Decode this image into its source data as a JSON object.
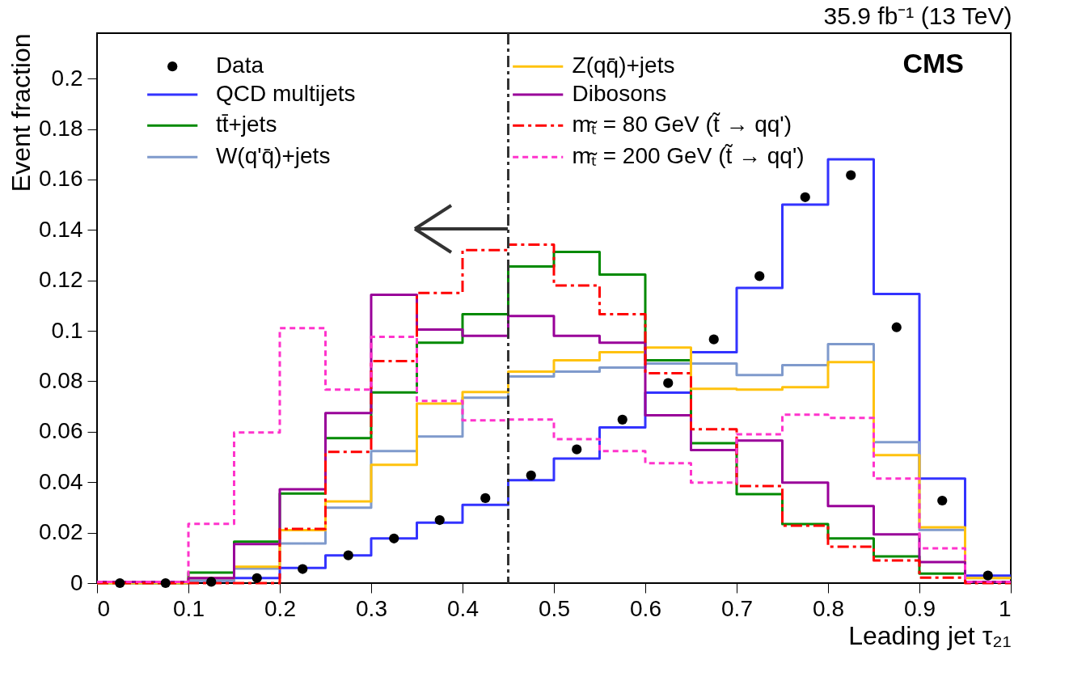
{
  "chart_data": {
    "type": "histogram",
    "title": "35.9 fb⁻¹ (13 TeV)",
    "xlabel": "Leading jet τ₂₁",
    "ylabel": "Event fraction",
    "xlim": [
      0,
      1
    ],
    "ylim": [
      0,
      0.218
    ],
    "xticks": [
      0,
      0.1,
      0.2,
      0.3,
      0.4,
      0.5,
      0.6,
      0.7,
      0.8,
      0.9,
      1
    ],
    "yticks": [
      0,
      0.02,
      0.04,
      0.06,
      0.08,
      0.1,
      0.12,
      0.14,
      0.16,
      0.18,
      0.2
    ],
    "grid": false,
    "legend": "top left",
    "bins": [
      0,
      0.05,
      0.1,
      0.15,
      0.2,
      0.25,
      0.3,
      0.35,
      0.4,
      0.45,
      0.5,
      0.55,
      0.6,
      0.65,
      0.7,
      0.75,
      0.8,
      0.85,
      0.9,
      0.95,
      1
    ],
    "series": [
      {
        "name": "Data",
        "type": "scatter",
        "marker": "circle",
        "color": "#000000",
        "x": [
          0.025,
          0.075,
          0.125,
          0.175,
          0.225,
          0.275,
          0.325,
          0.375,
          0.425,
          0.475,
          0.525,
          0.575,
          0.625,
          0.675,
          0.725,
          0.775,
          0.825,
          0.875,
          0.925,
          0.975
        ],
        "values": [
          0,
          0,
          0.0005,
          0.002,
          0.0056,
          0.011,
          0.0177,
          0.025,
          0.0337,
          0.0427,
          0.053,
          0.0648,
          0.0793,
          0.0966,
          0.1217,
          0.153,
          0.1617,
          0.1014,
          0.0327,
          0.003
        ]
      },
      {
        "name": "QCD multijets",
        "color": "#3333ff",
        "line_style": "solid",
        "values": [
          0.0005,
          0,
          0.001,
          0.002,
          0.006,
          0.011,
          0.0177,
          0.024,
          0.031,
          0.0408,
          0.0494,
          0.0617,
          0.0755,
          0.0915,
          0.117,
          0.15,
          0.168,
          0.1146,
          0.0414,
          0.003
        ]
      },
      {
        "name": "tt̄+jets",
        "color": "#008a00",
        "line_style": "solid",
        "values": [
          0,
          0,
          0.0042,
          0.0164,
          0.0355,
          0.0575,
          0.0756,
          0.0953,
          0.1066,
          0.1255,
          0.1313,
          0.1223,
          0.0883,
          0.0555,
          0.0353,
          0.0234,
          0.0177,
          0.0106,
          0.0038,
          0.0005
        ]
      },
      {
        "name": "W(q'q̄)+jets",
        "color": "#7f9acc",
        "line_style": "solid",
        "values": [
          0,
          0,
          0.001,
          0.0058,
          0.0157,
          0.0299,
          0.0523,
          0.0581,
          0.0735,
          0.0819,
          0.0838,
          0.0854,
          0.087,
          0.087,
          0.0825,
          0.0864,
          0.0947,
          0.0559,
          0.0211,
          0.002
        ]
      },
      {
        "name": "Z(qq̄)+jets",
        "color": "#ffc20e",
        "line_style": "solid",
        "values": [
          0,
          0,
          0.002,
          0.0065,
          0.021,
          0.0324,
          0.0469,
          0.0712,
          0.0757,
          0.0838,
          0.0883,
          0.0915,
          0.0934,
          0.077,
          0.0767,
          0.0777,
          0.0876,
          0.0507,
          0.0221,
          0.002
        ]
      },
      {
        "name": "Dibosons",
        "color": "#990099",
        "line_style": "solid",
        "values": [
          0.0005,
          0.0005,
          0.002,
          0.0155,
          0.0372,
          0.0674,
          0.1143,
          0.1005,
          0.098,
          0.1059,
          0.098,
          0.0953,
          0.0665,
          0.0527,
          0.0565,
          0.0398,
          0.0305,
          0.0193,
          0.0083,
          0.0005
        ]
      },
      {
        "name": "mₜ̃ = 80 GeV (t̃ → qq')",
        "color": "#ff0000",
        "line_style": "dashed",
        "values": [
          0,
          0,
          0,
          0,
          0.0215,
          0.052,
          0.088,
          0.115,
          0.132,
          0.1342,
          0.118,
          0.1066,
          0.0832,
          0.061,
          0.0385,
          0.0228,
          0.0144,
          0.009,
          0.0022,
          0
        ]
      },
      {
        "name": "mₜ̃ = 200 GeV (t̃ → qq')",
        "color": "#ff33cc",
        "line_style": "dotted",
        "values": [
          0.0005,
          0.0005,
          0.0235,
          0.0597,
          0.1011,
          0.0767,
          0.0976,
          0.0722,
          0.0645,
          0.0648,
          0.0571,
          0.0523,
          0.0475,
          0.0398,
          0.059,
          0.0668,
          0.0655,
          0.0414,
          0.0138,
          0.0005
        ]
      }
    ],
    "ref_lines": [
      {
        "axis": "x",
        "value": 0.45,
        "color": "#333333",
        "line_style": "dashed"
      }
    ],
    "annotations": [
      "CMS"
    ]
  }
}
